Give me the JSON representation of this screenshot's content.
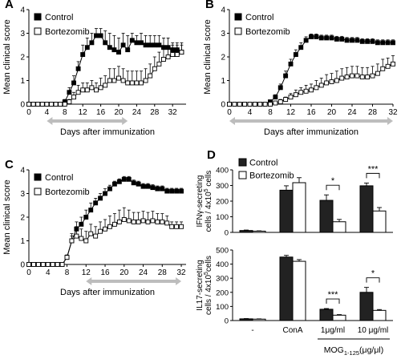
{
  "chart_data": [
    {
      "type": "line",
      "panel_label": "A",
      "xlabel": "Days after immunization",
      "ylabel": "Mean clinical score",
      "xlim": [
        0,
        35
      ],
      "ylim": [
        0,
        4
      ],
      "xticks": [
        0,
        4,
        8,
        12,
        16,
        20,
        24,
        28,
        32
      ],
      "yticks": [
        0,
        1,
        2,
        3,
        4
      ],
      "treatment_window": [
        4,
        22
      ],
      "legend": "top-left",
      "series": [
        {
          "name": "Control",
          "marker": "filled-square",
          "x": [
            0,
            1,
            2,
            3,
            4,
            5,
            6,
            7,
            8,
            9,
            10,
            11,
            12,
            13,
            14,
            15,
            16,
            17,
            18,
            19,
            20,
            21,
            22,
            23,
            24,
            25,
            26,
            27,
            28,
            29,
            30,
            31,
            32,
            33,
            34
          ],
          "y": [
            0,
            0,
            0,
            0,
            0,
            0,
            0,
            0,
            0.1,
            0.5,
            0.9,
            1.5,
            2.1,
            2.4,
            2.6,
            2.9,
            2.9,
            2.6,
            2.4,
            2.3,
            2.2,
            2.5,
            2.3,
            2.7,
            2.6,
            2.6,
            2.5,
            2.5,
            2.5,
            2.5,
            2.4,
            2.4,
            2.3,
            2.3,
            2.2
          ],
          "err": [
            0,
            0,
            0,
            0,
            0,
            0,
            0,
            0,
            0.1,
            0.2,
            0.3,
            0.3,
            0.4,
            0.4,
            0.4,
            0.3,
            0.3,
            0.5,
            0.6,
            0.6,
            0.6,
            0.5,
            0.6,
            0.3,
            0.3,
            0.4,
            0.4,
            0.4,
            0.4,
            0.4,
            0.4,
            0.4,
            0.3,
            0.3,
            0.3
          ]
        },
        {
          "name": "Bortezomib",
          "marker": "open-square",
          "x": [
            0,
            1,
            2,
            3,
            4,
            5,
            6,
            7,
            8,
            9,
            10,
            11,
            12,
            13,
            14,
            15,
            16,
            17,
            18,
            19,
            20,
            21,
            22,
            23,
            24,
            25,
            26,
            27,
            28,
            29,
            30,
            31,
            32,
            33,
            34
          ],
          "y": [
            0,
            0,
            0,
            0,
            0,
            0,
            0,
            0,
            0,
            0.1,
            0.3,
            0.5,
            0.6,
            0.6,
            0.7,
            0.6,
            0.7,
            0.8,
            1.0,
            1.0,
            1.1,
            1.0,
            0.9,
            0.9,
            0.9,
            0.9,
            1.0,
            1.2,
            1.5,
            1.7,
            1.9,
            2.0,
            2.1,
            2.1,
            2.2
          ],
          "err": [
            0,
            0,
            0,
            0,
            0,
            0,
            0,
            0,
            0,
            0.1,
            0.2,
            0.3,
            0.3,
            0.3,
            0.3,
            0.3,
            0.4,
            0.4,
            0.5,
            0.5,
            0.5,
            0.5,
            0.5,
            0.5,
            0.5,
            0.5,
            0.5,
            0.5,
            0.5,
            0.5,
            0.5,
            0.4,
            0.4,
            0.4,
            0.4
          ]
        }
      ]
    },
    {
      "type": "line",
      "panel_label": "B",
      "xlabel": "Days after immunization",
      "ylabel": "Mean clinical score",
      "xlim": [
        0,
        32
      ],
      "ylim": [
        0,
        4
      ],
      "xticks": [
        0,
        4,
        8,
        12,
        16,
        20,
        24,
        28,
        32
      ],
      "yticks": [
        0,
        1,
        2,
        3,
        4
      ],
      "treatment_window": [
        0,
        32
      ],
      "legend": "top-left",
      "series": [
        {
          "name": "Control",
          "marker": "filled-square",
          "x": [
            0,
            1,
            2,
            3,
            4,
            5,
            6,
            7,
            8,
            9,
            10,
            11,
            12,
            13,
            14,
            15,
            16,
            17,
            18,
            19,
            20,
            21,
            22,
            23,
            24,
            25,
            26,
            27,
            28,
            29,
            30,
            31,
            32
          ],
          "y": [
            0,
            0,
            0,
            0,
            0,
            0,
            0,
            0,
            0.1,
            0.3,
            0.7,
            1.2,
            1.7,
            2.1,
            2.4,
            2.7,
            2.85,
            2.85,
            2.8,
            2.8,
            2.8,
            2.75,
            2.75,
            2.7,
            2.7,
            2.7,
            2.65,
            2.65,
            2.65,
            2.6,
            2.6,
            2.6,
            2.6
          ],
          "err": [
            0,
            0,
            0,
            0,
            0,
            0,
            0,
            0,
            0.05,
            0.1,
            0.15,
            0.2,
            0.2,
            0.2,
            0.2,
            0.15,
            0.12,
            0.12,
            0.12,
            0.12,
            0.12,
            0.12,
            0.12,
            0.12,
            0.12,
            0.12,
            0.12,
            0.12,
            0.12,
            0.12,
            0.12,
            0.12,
            0.12
          ]
        },
        {
          "name": "Bortezomib",
          "marker": "open-square",
          "x": [
            0,
            1,
            2,
            3,
            4,
            5,
            6,
            7,
            8,
            9,
            10,
            11,
            12,
            13,
            14,
            15,
            16,
            17,
            18,
            19,
            20,
            21,
            22,
            23,
            24,
            25,
            26,
            27,
            28,
            29,
            30,
            31,
            32
          ],
          "y": [
            0,
            0,
            0,
            0,
            0,
            0,
            0,
            0,
            0,
            0.05,
            0.1,
            0.2,
            0.3,
            0.4,
            0.5,
            0.55,
            0.6,
            0.7,
            0.8,
            0.9,
            0.95,
            1.0,
            1.1,
            1.15,
            1.2,
            1.2,
            1.15,
            1.15,
            1.2,
            1.3,
            1.5,
            1.6,
            1.7
          ],
          "err": [
            0,
            0,
            0,
            0,
            0,
            0,
            0,
            0,
            0,
            0.05,
            0.1,
            0.1,
            0.15,
            0.2,
            0.2,
            0.25,
            0.25,
            0.3,
            0.3,
            0.35,
            0.35,
            0.4,
            0.4,
            0.4,
            0.4,
            0.4,
            0.4,
            0.4,
            0.4,
            0.4,
            0.4,
            0.35,
            0.35
          ]
        }
      ]
    },
    {
      "type": "line",
      "panel_label": "C",
      "xlabel": "Days after immunization",
      "ylabel": "Mean clinical score",
      "xlim": [
        0,
        33
      ],
      "ylim": [
        0,
        4
      ],
      "xticks": [
        0,
        4,
        8,
        12,
        16,
        20,
        24,
        28,
        32
      ],
      "yticks": [
        0,
        1,
        2,
        3,
        4
      ],
      "treatment_window": [
        12,
        32
      ],
      "legend": "top-left",
      "series": [
        {
          "name": "Control",
          "marker": "filled-square",
          "x": [
            0,
            1,
            2,
            3,
            4,
            5,
            6,
            7,
            8,
            9,
            10,
            11,
            12,
            13,
            14,
            15,
            16,
            17,
            18,
            19,
            20,
            21,
            22,
            23,
            24,
            25,
            26,
            27,
            28,
            29,
            30,
            31,
            32
          ],
          "y": [
            0,
            0,
            0,
            0,
            0,
            0,
            0,
            0,
            0.3,
            1.0,
            1.5,
            1.7,
            2.0,
            2.3,
            2.6,
            2.8,
            3.0,
            3.2,
            3.4,
            3.5,
            3.6,
            3.6,
            3.45,
            3.4,
            3.3,
            3.3,
            3.25,
            3.2,
            3.2,
            3.1,
            3.1,
            3.1,
            3.1
          ],
          "err": [
            0,
            0,
            0,
            0,
            0,
            0,
            0,
            0,
            0.1,
            0.2,
            0.3,
            0.3,
            0.3,
            0.3,
            0.2,
            0.2,
            0.2,
            0.15,
            0.12,
            0.12,
            0.12,
            0.12,
            0.12,
            0.12,
            0.12,
            0.12,
            0.12,
            0.12,
            0.12,
            0.12,
            0.12,
            0.12,
            0.12
          ]
        },
        {
          "name": "Bortezomib",
          "marker": "open-square",
          "x": [
            0,
            1,
            2,
            3,
            4,
            5,
            6,
            7,
            8,
            9,
            10,
            11,
            12,
            13,
            14,
            15,
            16,
            17,
            18,
            19,
            20,
            21,
            22,
            23,
            24,
            25,
            26,
            27,
            28,
            29,
            30,
            31,
            32
          ],
          "y": [
            0,
            0,
            0,
            0,
            0,
            0,
            0,
            0,
            0.3,
            1.0,
            1.2,
            1.1,
            1.0,
            1.3,
            1.2,
            1.4,
            1.5,
            1.6,
            1.7,
            1.8,
            1.9,
            1.85,
            1.8,
            1.8,
            1.85,
            1.8,
            1.85,
            1.8,
            1.8,
            1.75,
            1.6,
            1.6,
            1.6
          ],
          "err": [
            0,
            0,
            0,
            0,
            0,
            0,
            0,
            0,
            0.1,
            0.3,
            0.4,
            0.4,
            0.4,
            0.4,
            0.4,
            0.4,
            0.4,
            0.45,
            0.45,
            0.5,
            0.5,
            0.45,
            0.4,
            0.4,
            0.4,
            0.4,
            0.4,
            0.35,
            0.35,
            0.3,
            0.2,
            0.2,
            0.2
          ]
        }
      ]
    },
    {
      "type": "bar",
      "panel_label": "D",
      "legend": "top-left",
      "series_names": [
        "Control",
        "Bortezomib"
      ],
      "categories": [
        "-",
        "ConA",
        "1μg/ml",
        "10 μg/ml"
      ],
      "group_label": "MOG",
      "group_label_sub": "1-125",
      "group_label_tail": "(μg/μl)",
      "top": {
        "ylabel_line1": "IFNγ-secreting",
        "ylabel_line2": "cells / 4x10",
        "ylabel_sup": "5",
        "ylabel_tail": " cells",
        "ylim": [
          0,
          400
        ],
        "yticks": [
          0,
          100,
          200,
          300,
          400
        ],
        "control": [
          12,
          270,
          205,
          298
        ],
        "control_err": [
          3,
          28,
          35,
          18
        ],
        "bortezomib": [
          8,
          318,
          68,
          137
        ],
        "bortezomib_err": [
          2,
          32,
          15,
          22
        ],
        "significance": [
          {
            "category": 2,
            "label": "*"
          },
          {
            "category": 3,
            "label": "***"
          }
        ]
      },
      "bottom": {
        "ylabel_line1": "IL17-secreting",
        "ylabel_line2": "cells / 4x10",
        "ylabel_sup": "5",
        "ylabel_tail": "cells",
        "ylim": [
          0,
          500
        ],
        "yticks": [
          0,
          100,
          200,
          300,
          400,
          500
        ],
        "control": [
          12,
          450,
          80,
          200
        ],
        "control_err": [
          2,
          12,
          5,
          35
        ],
        "bortezomib": [
          10,
          420,
          38,
          72
        ],
        "bortezomib_err": [
          2,
          12,
          4,
          6
        ],
        "significance": [
          {
            "category": 2,
            "label": "***"
          },
          {
            "category": 3,
            "label": "*"
          }
        ]
      }
    }
  ]
}
